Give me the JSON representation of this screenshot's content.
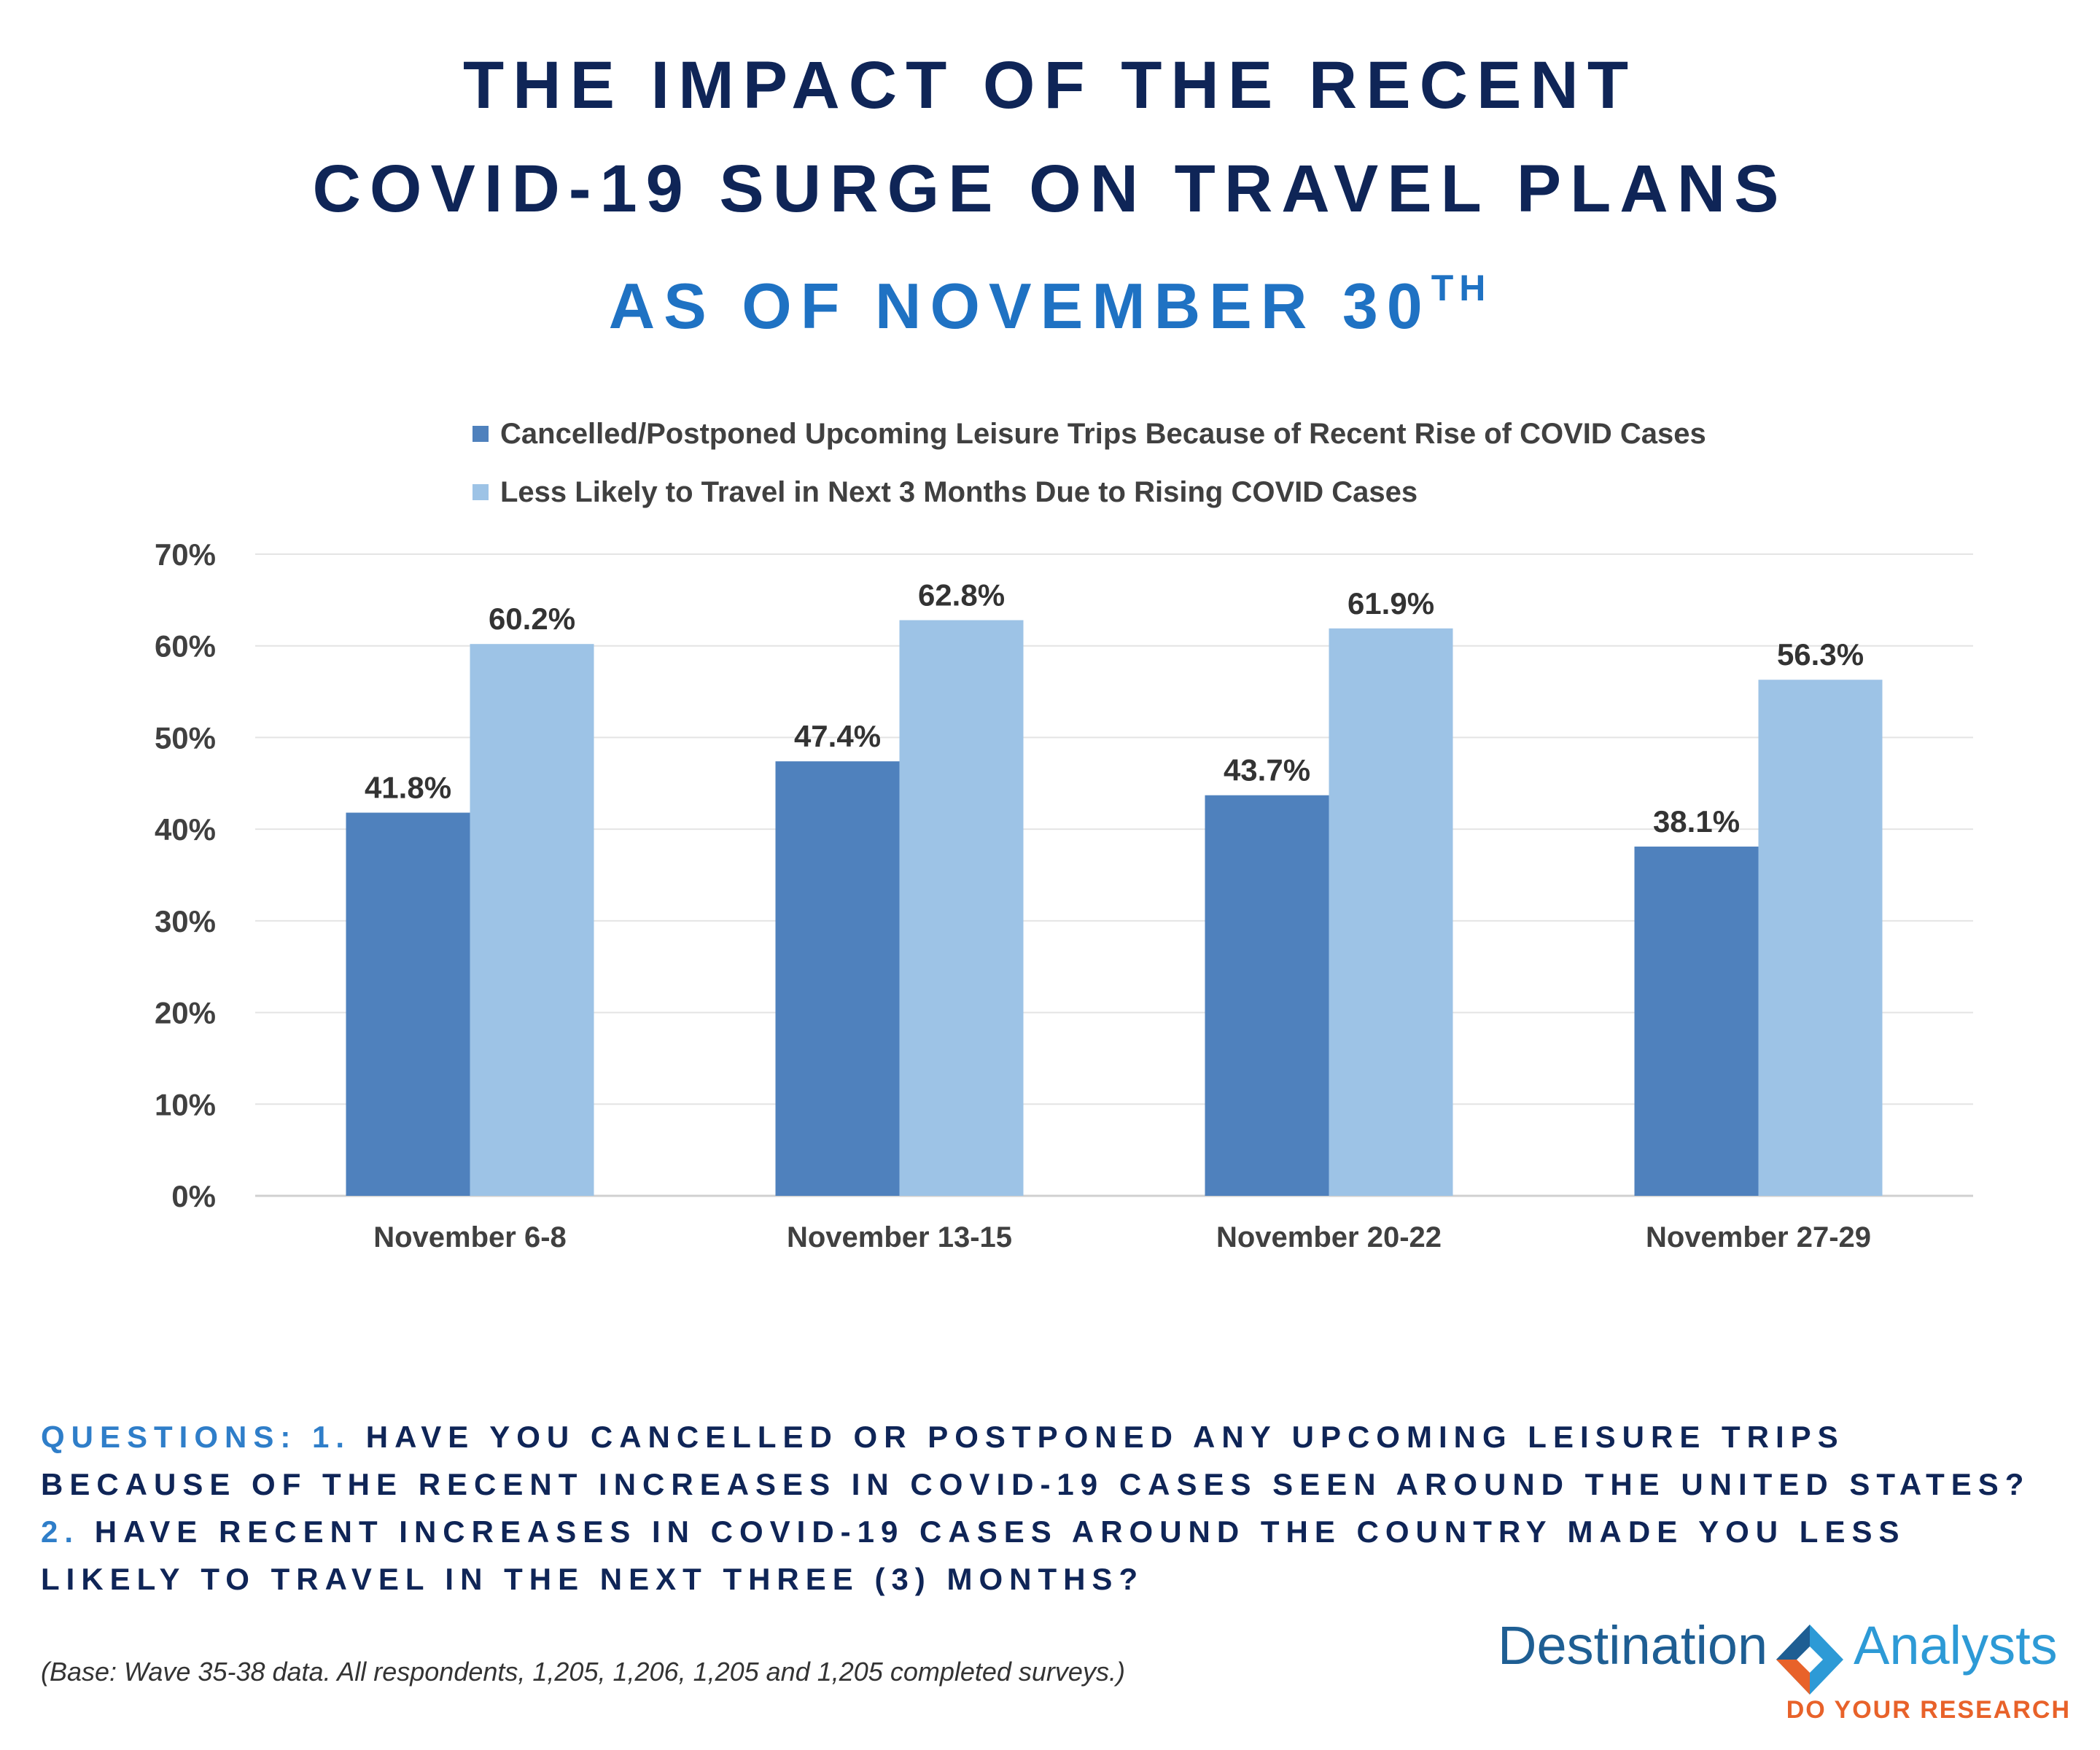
{
  "header": {
    "title_line1": "THE IMPACT OF THE RECENT",
    "title_line2": "COVID-19 SURGE ON TRAVEL PLANS",
    "subtitle_main": "AS OF NOVEMBER 30",
    "subtitle_sup": "TH"
  },
  "chart_data": {
    "type": "bar",
    "categories": [
      "November 6-8",
      "November 13-15",
      "November 20-22",
      "November 27-29"
    ],
    "series": [
      {
        "name": "Cancelled/Postponed Upcoming Leisure Trips Because of Recent Rise of COVID Cases",
        "values": [
          41.8,
          47.4,
          43.7,
          38.1
        ],
        "labels": [
          "41.8%",
          "47.4%",
          "43.7%",
          "38.1%"
        ],
        "color": "#4f81bd"
      },
      {
        "name": "Less Likely to Travel in Next 3 Months Due to Rising COVID Cases",
        "values": [
          60.2,
          62.8,
          61.9,
          56.3
        ],
        "labels": [
          "60.2%",
          "62.8%",
          "61.9%",
          "56.3%"
        ],
        "color": "#9dc3e6"
      }
    ],
    "ylim": [
      0,
      70
    ],
    "y_ticks": [
      0,
      10,
      20,
      30,
      40,
      50,
      60,
      70
    ],
    "y_tick_labels": [
      "0%",
      "10%",
      "20%",
      "30%",
      "40%",
      "50%",
      "60%",
      "70%"
    ],
    "grid": true,
    "legend_position": "top",
    "xlabel": "",
    "ylabel": ""
  },
  "questions": {
    "lead": "QUESTIONS: ",
    "q1_number": "1.",
    "q1_text": " HAVE YOU CANCELLED OR POSTPONED ANY UPCOMING LEISURE TRIPS BECAUSE OF THE RECENT INCREASES IN COVID-19 CASES SEEN AROUND THE UNITED STATES? ",
    "q2_number": "2.",
    "q2_text": " HAVE RECENT INCREASES IN COVID-19 CASES AROUND THE COUNTRY MADE YOU LESS LIKELY TO TRAVEL IN THE NEXT THREE (3) MONTHS?"
  },
  "footnote": "(Base: Wave 35-38 data. All respondents, 1,205, 1,206, 1,205 and 1,205 completed surveys.)",
  "logo": {
    "word_left": "Destination",
    "word_right": "Analysts",
    "tagline": "DO YOUR RESEARCH",
    "colors": {
      "dark_blue": "#1e5e93",
      "light_blue": "#2d9ad6",
      "orange": "#e8622a"
    }
  }
}
